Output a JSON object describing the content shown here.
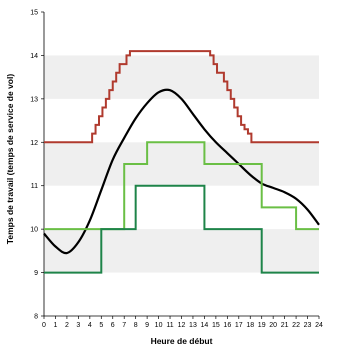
{
  "chart_data": {
    "type": "line",
    "title": "",
    "xlabel": "Heure de début",
    "ylabel": "Temps de travail (temps de service de vol)",
    "xlim": [
      0,
      24
    ],
    "ylim": [
      8,
      15
    ],
    "xticks": [
      0,
      1,
      2,
      3,
      4,
      5,
      6,
      7,
      8,
      9,
      10,
      11,
      12,
      13,
      14,
      15,
      16,
      17,
      18,
      19,
      20,
      21,
      22,
      23,
      24
    ],
    "yticks": [
      8,
      9,
      10,
      11,
      12,
      13,
      14,
      15
    ],
    "grid": "alternating horizontal bands",
    "legend": "none",
    "series": [
      {
        "color": "#b03a2e",
        "kind": "step",
        "x": [
          0,
          4,
          4.2,
          4.5,
          4.8,
          5.1,
          5.4,
          5.7,
          6.0,
          6.3,
          6.6,
          6.9,
          7.2,
          7.5,
          7.8,
          8.1,
          14.5,
          14.5,
          14.8,
          15.1,
          15.4,
          15.7,
          16.0,
          16.3,
          16.6,
          16.9,
          17.2,
          17.5,
          17.8,
          18.1,
          18.4,
          24
        ],
        "y": [
          12,
          12,
          12.2,
          12.4,
          12.6,
          12.8,
          13.0,
          13.2,
          13.4,
          13.6,
          13.8,
          13.8,
          14.0,
          14.1,
          14.1,
          14.1,
          14.1,
          14.0,
          13.8,
          13.6,
          13.6,
          13.4,
          13.2,
          13.0,
          12.8,
          12.6,
          12.4,
          12.3,
          12.2,
          12.0,
          12.0,
          12.0
        ]
      },
      {
        "color": "#000000",
        "kind": "smooth",
        "x": [
          0,
          1,
          2,
          3,
          4,
          5,
          6,
          7,
          8,
          9,
          10,
          11,
          12,
          13,
          14,
          15,
          16,
          17,
          18,
          19,
          20,
          21,
          22,
          23,
          24
        ],
        "y": [
          9.9,
          9.6,
          9.45,
          9.7,
          10.2,
          10.9,
          11.6,
          12.1,
          12.55,
          12.9,
          13.15,
          13.2,
          13.0,
          12.65,
          12.3,
          12.0,
          11.75,
          11.5,
          11.25,
          11.05,
          10.95,
          10.85,
          10.7,
          10.45,
          10.1
        ]
      },
      {
        "color": "#6abf45",
        "kind": "step",
        "x": [
          0,
          5.5,
          5.5,
          7,
          7,
          9,
          9,
          14,
          14,
          19,
          19,
          22,
          22,
          24
        ],
        "y": [
          10,
          10,
          10,
          10,
          11.5,
          11.5,
          12,
          12,
          11.5,
          11.5,
          10.5,
          10.5,
          10,
          10
        ]
      },
      {
        "color": "#1e8449",
        "kind": "step",
        "x": [
          0,
          5,
          5,
          7,
          7,
          8,
          8,
          14,
          14,
          19,
          19,
          24
        ],
        "y": [
          9,
          9,
          10,
          10,
          10,
          10,
          11,
          11,
          10,
          10,
          9,
          9
        ]
      }
    ]
  }
}
